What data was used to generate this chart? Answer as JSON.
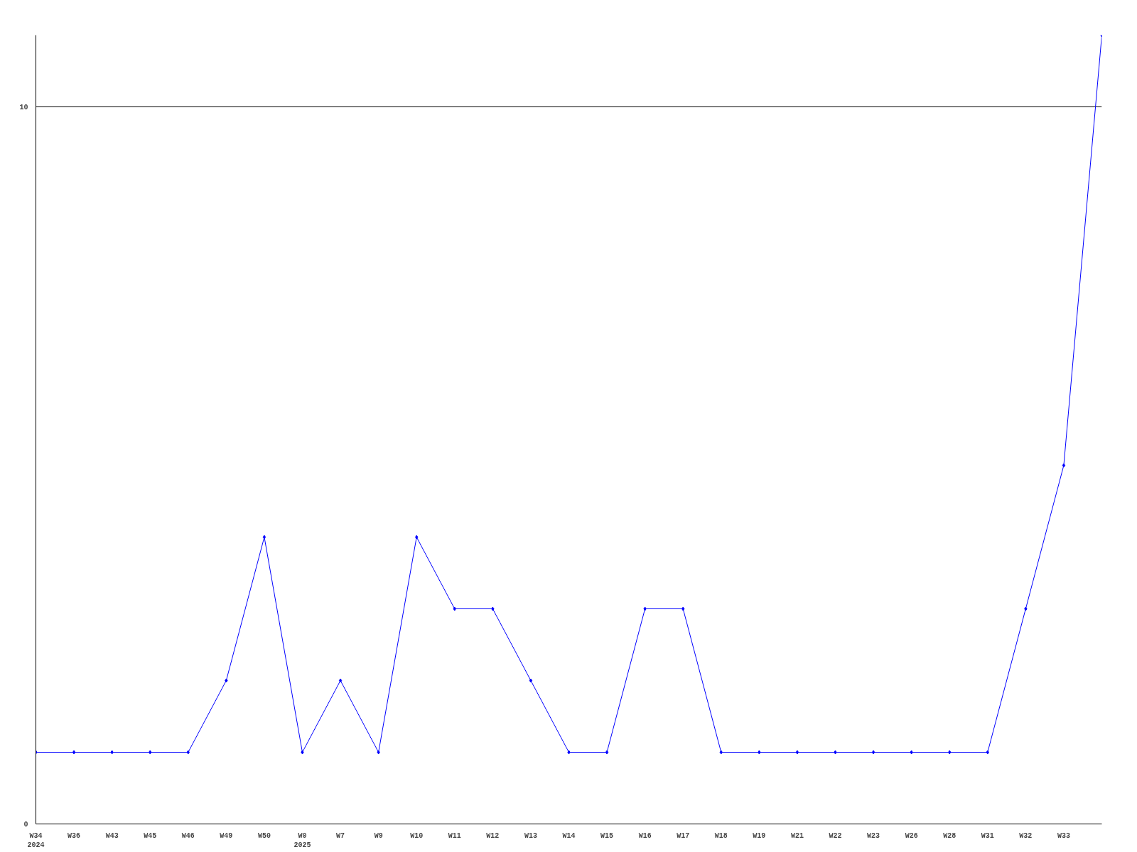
{
  "chart_data": {
    "type": "line",
    "categories": [
      "W34\n2024",
      "W36",
      "W43",
      "W45",
      "W46",
      "W49",
      "W50",
      "W0\n2025",
      "W7",
      "W9",
      "W10",
      "W11",
      "W12",
      "W13",
      "W14",
      "W15",
      "W16",
      "W17",
      "W18",
      "W19",
      "W21",
      "W22",
      "W23",
      "W26",
      "W28",
      "W31",
      "W32",
      "W33",
      null
    ],
    "series": [
      {
        "color": "#0000ff",
        "values": [
          1,
          1,
          1,
          1,
          1,
          2,
          4,
          1,
          2,
          1,
          4,
          3,
          3,
          2,
          1,
          1,
          3,
          3,
          1,
          1,
          1,
          1,
          1,
          1,
          1,
          1,
          3,
          5,
          11
        ]
      }
    ],
    "ylim": [
      0,
      11
    ],
    "yticks": [
      0,
      10
    ],
    "grid": "y",
    "marker": "diamond",
    "line_style": "solid"
  }
}
